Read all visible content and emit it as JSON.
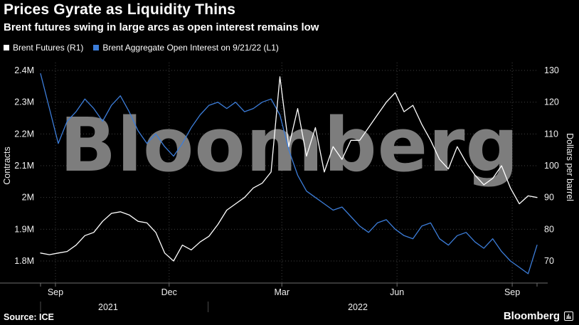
{
  "header": {
    "title": "Prices Gyrate as Liquidity Thins",
    "subtitle": "Brent futures swing in large arcs as open interest remains low"
  },
  "legend": {
    "items": [
      {
        "label": "Brent Futures (R1)",
        "color": "#ffffff"
      },
      {
        "label": "Brent Aggregate Open Interest on 9/21/22 (L1)",
        "color": "#3c7dd9"
      }
    ]
  },
  "watermark": "Bloomberg",
  "footer": {
    "source": "Source: ICE",
    "brand": "Bloomberg"
  },
  "colors": {
    "background": "#000000",
    "grid": "#404040",
    "axis": "#6e6e6e",
    "tick_text": "#f0f0f0",
    "watermark": "#7d7d7d",
    "brent_futures": "#ffffff",
    "open_interest": "#3c7dd9"
  },
  "chart_data": {
    "type": "line",
    "title": "Prices Gyrate as Liquidity Thins",
    "subtitle": "Brent futures swing in large arcs as open interest remains low",
    "grid": true,
    "legend_position": "top-left",
    "left_axis": {
      "title": "Contracts",
      "tick_labels": [
        "2.4M",
        "2.3M",
        "2.2M",
        "2.1M",
        "2M",
        "1.9M",
        "1.8M"
      ],
      "tick_values": [
        2.4,
        2.3,
        2.2,
        2.1,
        2.0,
        1.9,
        1.8
      ]
    },
    "right_axis": {
      "title": "Dollars per barrel",
      "tick_labels": [
        "130",
        "120",
        "110",
        "100",
        "90",
        "80",
        "70"
      ],
      "tick_values": [
        130,
        120,
        110,
        100,
        90,
        80,
        70
      ]
    },
    "x_axis": {
      "span": "late Aug 2021 to late Sep 2022",
      "month_ticks": [
        {
          "label": "Sep",
          "pos": 0.03
        },
        {
          "label": "Dec",
          "pos": 0.259
        },
        {
          "label": "Mar",
          "pos": 0.486
        },
        {
          "label": "Jun",
          "pos": 0.718
        },
        {
          "label": "Sep",
          "pos": 0.95
        }
      ],
      "year_labels": [
        {
          "label": "2021",
          "pos": 0.136
        },
        {
          "label": "2022",
          "pos": 0.639
        }
      ],
      "year_boundary_pos": 0.3375
    },
    "series": [
      {
        "name": "Brent Aggregate Open Interest on 9/21/22 (L1)",
        "axis": "left",
        "units": "million contracts",
        "color": "#3c7dd9",
        "values": [
          2.39,
          2.28,
          2.17,
          2.24,
          2.27,
          2.31,
          2.28,
          2.24,
          2.29,
          2.32,
          2.27,
          2.21,
          2.17,
          2.2,
          2.16,
          2.13,
          2.17,
          2.22,
          2.26,
          2.29,
          2.3,
          2.28,
          2.3,
          2.27,
          2.28,
          2.3,
          2.31,
          2.26,
          2.15,
          2.07,
          2.02,
          2.0,
          1.98,
          1.96,
          1.97,
          1.94,
          1.91,
          1.89,
          1.92,
          1.93,
          1.9,
          1.88,
          1.87,
          1.91,
          1.92,
          1.87,
          1.85,
          1.88,
          1.89,
          1.86,
          1.84,
          1.87,
          1.83,
          1.8,
          1.78,
          1.76,
          1.85
        ]
      },
      {
        "name": "Brent Futures (R1)",
        "axis": "right",
        "units": "dollars per barrel",
        "color": "#ffffff",
        "values": [
          72.5,
          72,
          72.5,
          73,
          75,
          78,
          79,
          82.5,
          85,
          85.5,
          84.5,
          82.5,
          82,
          79,
          72.5,
          70,
          75,
          73.5,
          76,
          77.8,
          81.5,
          86,
          88,
          90,
          93,
          94.5,
          98,
          128,
          106,
          118,
          103,
          112,
          98,
          106,
          102,
          108,
          108,
          112,
          116,
          120,
          123,
          117,
          119,
          113,
          108,
          102,
          99,
          106,
          101,
          97,
          94,
          96,
          100,
          93,
          88,
          90.5,
          90
        ]
      }
    ]
  }
}
